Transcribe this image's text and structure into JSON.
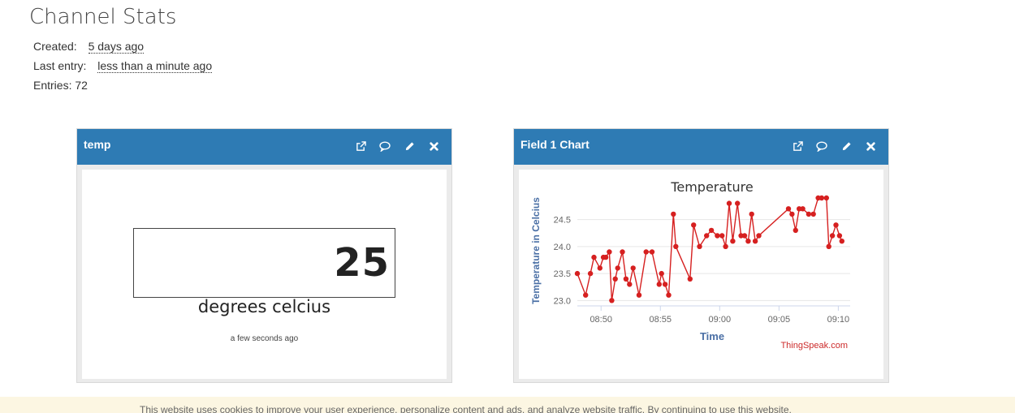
{
  "page": {
    "title": "Channel Stats",
    "created_label": "Created:",
    "created_value": "5 days ago",
    "last_entry_label": "Last entry:",
    "last_entry_value": "less than a minute ago",
    "entries_text": "Entries: 72"
  },
  "widget_display": {
    "title": "temp",
    "value": "25",
    "units": "degrees celcius",
    "updated": "a few seconds ago",
    "header_color": "#2e7bb4"
  },
  "widget_chart": {
    "title": "Field 1 Chart",
    "credit": "ThingSpeak.com"
  },
  "header_icons": [
    "external-link-icon",
    "comment-icon",
    "pencil-icon",
    "close-icon"
  ],
  "cookie_notice": {
    "text": "This website uses cookies to improve your user experience, personalize content and ads, and analyze website traffic. By continuing to use this website,"
  },
  "chart_data": {
    "type": "line",
    "title": "Temperature",
    "xlabel": "Time",
    "ylabel": "Temperature in Celcius",
    "series_color": "#d62020",
    "x_ticks": [
      "08:50",
      "08:55",
      "09:00",
      "09:05",
      "09:10"
    ],
    "x_tick_minutes": [
      50,
      55,
      60,
      65,
      70
    ],
    "y_ticks": [
      "23.0",
      "23.5",
      "24.0",
      "24.5"
    ],
    "y_tick_values": [
      23.0,
      23.5,
      24.0,
      24.5
    ],
    "xlim_minutes": [
      48,
      71
    ],
    "ylim": [
      22.9,
      24.9
    ],
    "x_minutes": [
      48.0,
      48.7,
      49.1,
      49.4,
      49.9,
      50.2,
      50.4,
      50.7,
      50.9,
      51.2,
      51.4,
      51.8,
      52.1,
      52.4,
      52.7,
      53.2,
      53.8,
      54.3,
      54.9,
      55.1,
      55.4,
      55.7,
      56.1,
      56.3,
      57.5,
      57.8,
      58.3,
      58.9,
      59.3,
      59.8,
      60.2,
      60.5,
      60.8,
      61.1,
      61.5,
      61.8,
      62.1,
      62.4,
      62.7,
      63.0,
      63.3,
      65.8,
      66.1,
      66.4,
      66.7,
      67.0,
      67.5,
      67.9,
      68.3,
      68.6,
      69.0,
      69.2,
      69.5,
      69.8,
      70.1,
      70.3
    ],
    "y": [
      23.5,
      23.1,
      23.5,
      23.8,
      23.6,
      23.8,
      23.8,
      23.9,
      23.0,
      23.4,
      23.6,
      23.9,
      23.4,
      23.3,
      23.6,
      23.1,
      23.9,
      23.9,
      23.3,
      23.5,
      23.3,
      23.1,
      24.6,
      24.0,
      23.4,
      24.4,
      24.0,
      24.2,
      24.3,
      24.2,
      24.2,
      24.0,
      24.8,
      24.1,
      24.8,
      24.2,
      24.2,
      24.1,
      24.6,
      24.1,
      24.2,
      24.7,
      24.6,
      24.3,
      24.7,
      24.7,
      24.6,
      24.6,
      24.9,
      24.9,
      24.9,
      24.0,
      24.2,
      24.4,
      24.2,
      24.1
    ]
  }
}
